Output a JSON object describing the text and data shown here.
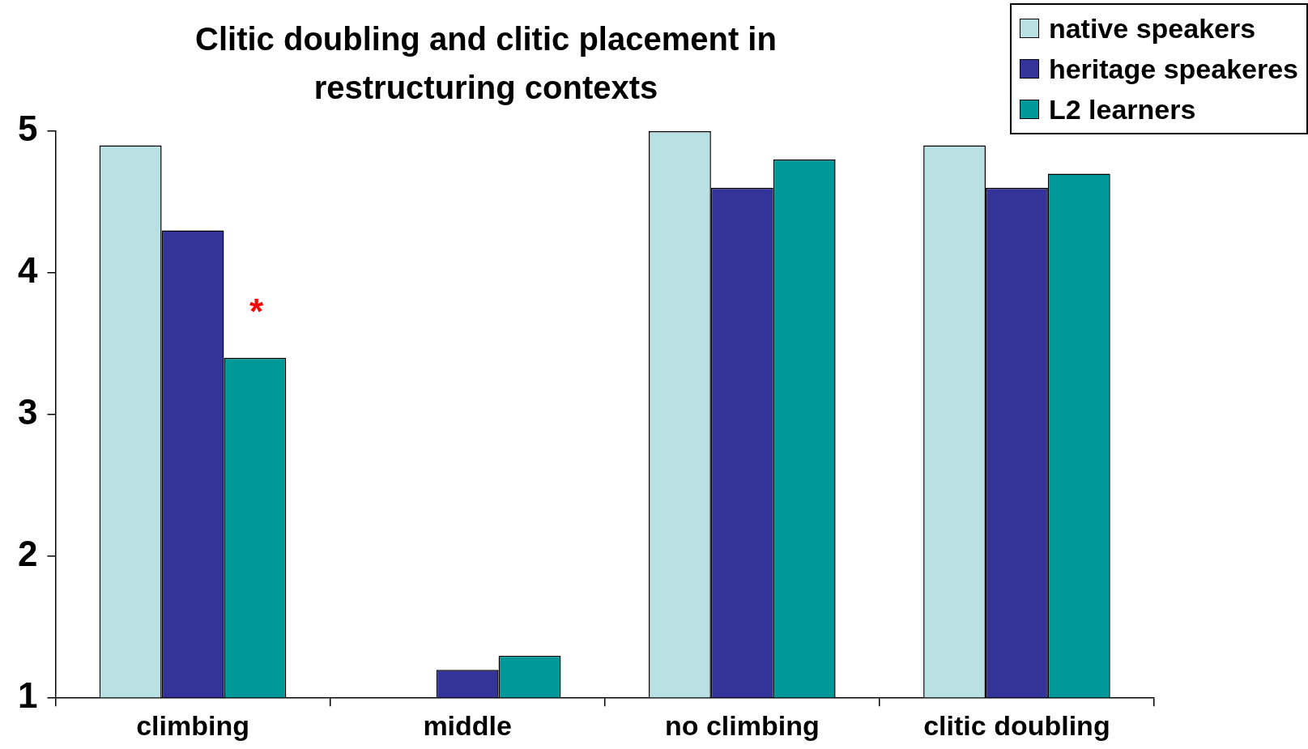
{
  "chart_data": {
    "type": "bar",
    "title": "Clitic doubling and clitic placement in restructuring contexts",
    "categories": [
      "climbing",
      "middle",
      "no climbing",
      "clitic doubling"
    ],
    "series": [
      {
        "name": "native speakers",
        "color": "#b9e0e3",
        "values": [
          4.9,
          1,
          5,
          4.9
        ]
      },
      {
        "name": "heritage speakeres",
        "color": "#333399",
        "values": [
          4.3,
          1.2,
          4.6,
          4.6
        ]
      },
      {
        "name": "L2 learners",
        "color": "#009999",
        "values": [
          3.4,
          1.3,
          4.8,
          4.7
        ]
      }
    ],
    "ylim": [
      1,
      5
    ],
    "yticks": [
      1,
      2,
      3,
      4,
      5
    ],
    "grid": false,
    "legend": "top right",
    "annotations": [
      "*"
    ]
  }
}
